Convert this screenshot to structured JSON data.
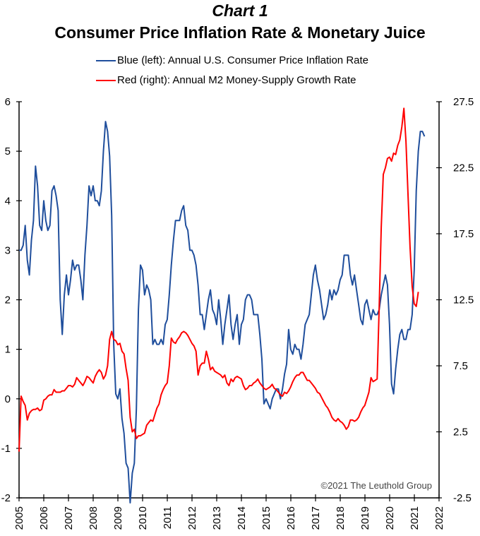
{
  "header": {
    "chart_number": "Chart 1",
    "title": "Consumer Price Inflation Rate & Monetary Juice"
  },
  "legend": [
    {
      "label": "Blue (left): Annual U.S. Consumer Price Inflation Rate",
      "color": "#1f4e9c"
    },
    {
      "label": "Red (right): Annual M2 Money-Supply Growth Rate",
      "color": "#ff0000"
    }
  ],
  "watermark": "©2021 The Leuthold Group",
  "chart_data": {
    "type": "line",
    "title": "Consumer Price Inflation Rate & Monetary Juice",
    "subtitle": "Chart 1",
    "xlabel": "",
    "x_ticks": [
      "2005",
      "2006",
      "2007",
      "2008",
      "2009",
      "2010",
      "2011",
      "2012",
      "2013",
      "2014",
      "2015",
      "2016",
      "2017",
      "2018",
      "2019",
      "2020",
      "2021",
      "2022"
    ],
    "xlim": [
      2005,
      2022
    ],
    "y_left": {
      "label": "Annual U.S. Consumer Price Inflation Rate (%)",
      "ticks": [
        "6",
        "5",
        "4",
        "3",
        "2",
        "1",
        "0",
        "-1",
        "-2"
      ],
      "ylim": [
        -2,
        6
      ]
    },
    "y_right": {
      "label": "Annual M2 Money-Supply Growth Rate (%)",
      "ticks": [
        "27.5",
        "22.5",
        "17.5",
        "12.5",
        "7.5",
        "2.5",
        "-2.5"
      ],
      "ylim": [
        -2.5,
        27.5
      ]
    },
    "grid": false,
    "legend_position": "top",
    "series": [
      {
        "name": "Blue (left): Annual U.S. Consumer Price Inflation Rate",
        "axis": "left",
        "color": "#1f4e9c",
        "x_start": 2005.0,
        "x_step": 0.0833,
        "values": [
          3.0,
          3.0,
          3.1,
          3.5,
          2.8,
          2.5,
          3.2,
          3.6,
          4.7,
          4.3,
          3.5,
          3.4,
          4.0,
          3.6,
          3.4,
          3.5,
          4.2,
          4.3,
          4.1,
          3.8,
          2.0,
          1.3,
          2.1,
          2.5,
          2.1,
          2.4,
          2.8,
          2.6,
          2.7,
          2.7,
          2.4,
          2.0,
          2.9,
          3.5,
          4.3,
          4.1,
          4.3,
          4.0,
          4.0,
          3.9,
          4.2,
          5.0,
          5.6,
          5.4,
          4.9,
          3.7,
          1.1,
          0.1,
          0.0,
          0.2,
          -0.4,
          -0.7,
          -1.3,
          -1.4,
          -2.1,
          -1.5,
          -1.3,
          -0.2,
          1.8,
          2.7,
          2.6,
          2.1,
          2.3,
          2.2,
          2.0,
          1.1,
          1.2,
          1.1,
          1.1,
          1.2,
          1.1,
          1.5,
          1.6,
          2.1,
          2.7,
          3.2,
          3.6,
          3.6,
          3.6,
          3.8,
          3.9,
          3.5,
          3.4,
          3.0,
          3.0,
          2.9,
          2.7,
          2.3,
          1.7,
          1.7,
          1.4,
          1.7,
          2.0,
          2.2,
          1.8,
          1.7,
          1.5,
          2.0,
          1.6,
          1.1,
          1.5,
          1.8,
          2.1,
          1.5,
          1.2,
          1.5,
          1.7,
          1.1,
          1.5,
          1.6,
          2.0,
          2.1,
          2.1,
          2.0,
          1.7,
          1.7,
          1.7,
          1.3,
          0.8,
          -0.1,
          0.0,
          -0.1,
          -0.2,
          0.0,
          0.1,
          0.2,
          0.2,
          0.0,
          0.2,
          0.5,
          0.7,
          1.4,
          1.0,
          0.9,
          1.1,
          1.0,
          1.0,
          0.8,
          1.1,
          1.5,
          1.6,
          1.7,
          2.1,
          2.5,
          2.7,
          2.4,
          2.2,
          1.9,
          1.6,
          1.7,
          1.9,
          2.2,
          2.0,
          2.2,
          2.1,
          2.2,
          2.4,
          2.5,
          2.9,
          2.9,
          2.9,
          2.5,
          2.3,
          2.5,
          2.2,
          1.9,
          1.6,
          1.5,
          1.9,
          2.0,
          1.8,
          1.6,
          1.8,
          1.7,
          1.7,
          1.8,
          2.1,
          2.3,
          2.5,
          2.3,
          1.5,
          0.3,
          0.1,
          0.6,
          1.0,
          1.3,
          1.4,
          1.2,
          1.2,
          1.4,
          1.4,
          1.7,
          2.6,
          4.2,
          5.0,
          5.4,
          5.4,
          5.3
        ]
      },
      {
        "name": "Red (right): Annual M2 Money-Supply Growth Rate",
        "axis": "right",
        "color": "#ff0000",
        "x_start": 2005.0,
        "x_step": 0.0833,
        "values": [
          1.0,
          5.2,
          4.8,
          4.5,
          3.4,
          3.9,
          4.1,
          4.2,
          4.2,
          4.3,
          4.1,
          4.2,
          4.9,
          5.0,
          5.2,
          5.3,
          5.3,
          5.7,
          5.5,
          5.5,
          5.5,
          5.6,
          5.6,
          5.8,
          6.0,
          6.0,
          5.9,
          6.1,
          6.6,
          6.4,
          6.2,
          6.0,
          6.3,
          6.7,
          6.6,
          6.4,
          6.2,
          6.7,
          7.0,
          7.2,
          7.0,
          6.5,
          6.8,
          7.5,
          9.5,
          10.1,
          9.5,
          9.4,
          9.1,
          9.2,
          8.6,
          8.4,
          7.3,
          6.4,
          3.6,
          2.5,
          2.7,
          2.0,
          2.2,
          2.2,
          2.3,
          2.4,
          3.0,
          3.2,
          3.4,
          3.3,
          3.8,
          4.3,
          4.6,
          5.3,
          5.7,
          6.0,
          6.2,
          7.5,
          9.6,
          9.3,
          9.2,
          9.5,
          9.7,
          10.0,
          10.1,
          10.0,
          9.8,
          9.5,
          9.2,
          9.0,
          8.6,
          6.8,
          7.5,
          7.7,
          7.7,
          8.6,
          8.0,
          7.2,
          7.4,
          7.1,
          7.0,
          6.9,
          6.8,
          6.6,
          6.8,
          6.2,
          6.0,
          6.5,
          6.3,
          6.6,
          6.7,
          6.6,
          6.5,
          6.0,
          5.7,
          5.8,
          6.0,
          6.0,
          6.2,
          6.3,
          6.5,
          6.2,
          6.0,
          5.8,
          5.7,
          5.8,
          5.9,
          6.1,
          5.8,
          5.7,
          5.5,
          5.3,
          5.2,
          5.5,
          5.4,
          5.6,
          5.9,
          6.3,
          6.6,
          6.8,
          6.8,
          7.0,
          7.0,
          6.7,
          6.4,
          6.4,
          6.2,
          6.0,
          5.8,
          5.5,
          5.4,
          5.1,
          4.8,
          4.5,
          4.3,
          4.0,
          3.6,
          3.4,
          3.3,
          3.5,
          3.3,
          3.2,
          3.0,
          2.7,
          2.9,
          3.4,
          3.4,
          3.3,
          3.4,
          3.6,
          4.0,
          4.3,
          4.5,
          5.0,
          5.5,
          6.6,
          6.3,
          6.4,
          6.5,
          12.0,
          18.0,
          22.0,
          22.5,
          23.2,
          23.3,
          23.0,
          23.6,
          23.5,
          24.2,
          24.6,
          25.6,
          27.0,
          24.5,
          20.5,
          16.5,
          13.5,
          12.2,
          12.0,
          13.1
        ]
      }
    ]
  }
}
